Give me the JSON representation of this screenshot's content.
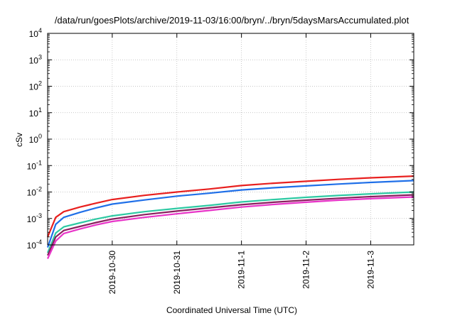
{
  "chart_data": {
    "type": "line",
    "title": "/data/run/goesPlots/archive/2019-11-03/16:00/bryn/../bryn/5daysMarsAccumulated.plot",
    "xlabel": "Coordinated Universal Time (UTC)",
    "ylabel": "cSv",
    "y_scale": "log",
    "ylim": [
      0.0001,
      10000
    ],
    "y_ticks": [
      {
        "base": "10",
        "exp": "-4"
      },
      {
        "base": "10",
        "exp": "-3"
      },
      {
        "base": "10",
        "exp": "-2"
      },
      {
        "base": "10",
        "exp": "-1"
      },
      {
        "base": "10",
        "exp": "0"
      },
      {
        "base": "10",
        "exp": "1"
      },
      {
        "base": "10",
        "exp": "2"
      },
      {
        "base": "10",
        "exp": "3"
      },
      {
        "base": "10",
        "exp": "4"
      }
    ],
    "xlim": [
      "2019-10-29T00:00",
      "2019-11-03T16:00"
    ],
    "x_ticks": [
      "2019-10-30",
      "2019-10-31",
      "2019-11-1",
      "2019-11-2",
      "2019-11-3"
    ],
    "x_tick_dates": [
      "2019-10-30T00:00",
      "2019-10-31T00:00",
      "2019-11-01T00:00",
      "2019-11-02T00:00",
      "2019-11-03T00:00"
    ],
    "grid": true,
    "x": [
      "2019-10-29T00:00",
      "2019-10-29T03:00",
      "2019-10-29T06:00",
      "2019-10-29T12:00",
      "2019-10-29T18:00",
      "2019-10-30T00:00",
      "2019-10-30T12:00",
      "2019-10-31T00:00",
      "2019-10-31T12:00",
      "2019-11-01T00:00",
      "2019-11-01T12:00",
      "2019-11-02T00:00",
      "2019-11-02T12:00",
      "2019-11-03T00:00",
      "2019-11-03T16:00"
    ],
    "series": [
      {
        "color": "#e8201f",
        "values": [
          0.0002,
          0.0011,
          0.0018,
          0.0027,
          0.0038,
          0.0052,
          0.0075,
          0.01,
          0.013,
          0.0175,
          0.0215,
          0.0255,
          0.03,
          0.0345,
          0.04
        ]
      },
      {
        "color": "#1f6fe8",
        "values": [
          8e-05,
          0.0006,
          0.0011,
          0.0017,
          0.0025,
          0.0035,
          0.005,
          0.007,
          0.009,
          0.012,
          0.0145,
          0.017,
          0.02,
          0.023,
          0.027
        ]
      },
      {
        "color": "#2ec9a3",
        "values": [
          5e-05,
          0.00028,
          0.00048,
          0.00068,
          0.00095,
          0.00125,
          0.0018,
          0.0024,
          0.0031,
          0.0042,
          0.0052,
          0.0063,
          0.0074,
          0.0085,
          0.01
        ]
      },
      {
        "color": "#8a1f5e",
        "values": [
          4e-05,
          0.0002,
          0.00035,
          0.0005,
          0.0007,
          0.00095,
          0.0014,
          0.0019,
          0.0025,
          0.0033,
          0.0041,
          0.0049,
          0.0058,
          0.0067,
          0.0078
        ]
      },
      {
        "color": "#e834c8",
        "values": [
          3e-05,
          0.00014,
          0.00027,
          0.0004,
          0.00057,
          0.00077,
          0.0011,
          0.0015,
          0.002,
          0.0027,
          0.0034,
          0.0041,
          0.0049,
          0.0056,
          0.0065
        ]
      }
    ]
  }
}
